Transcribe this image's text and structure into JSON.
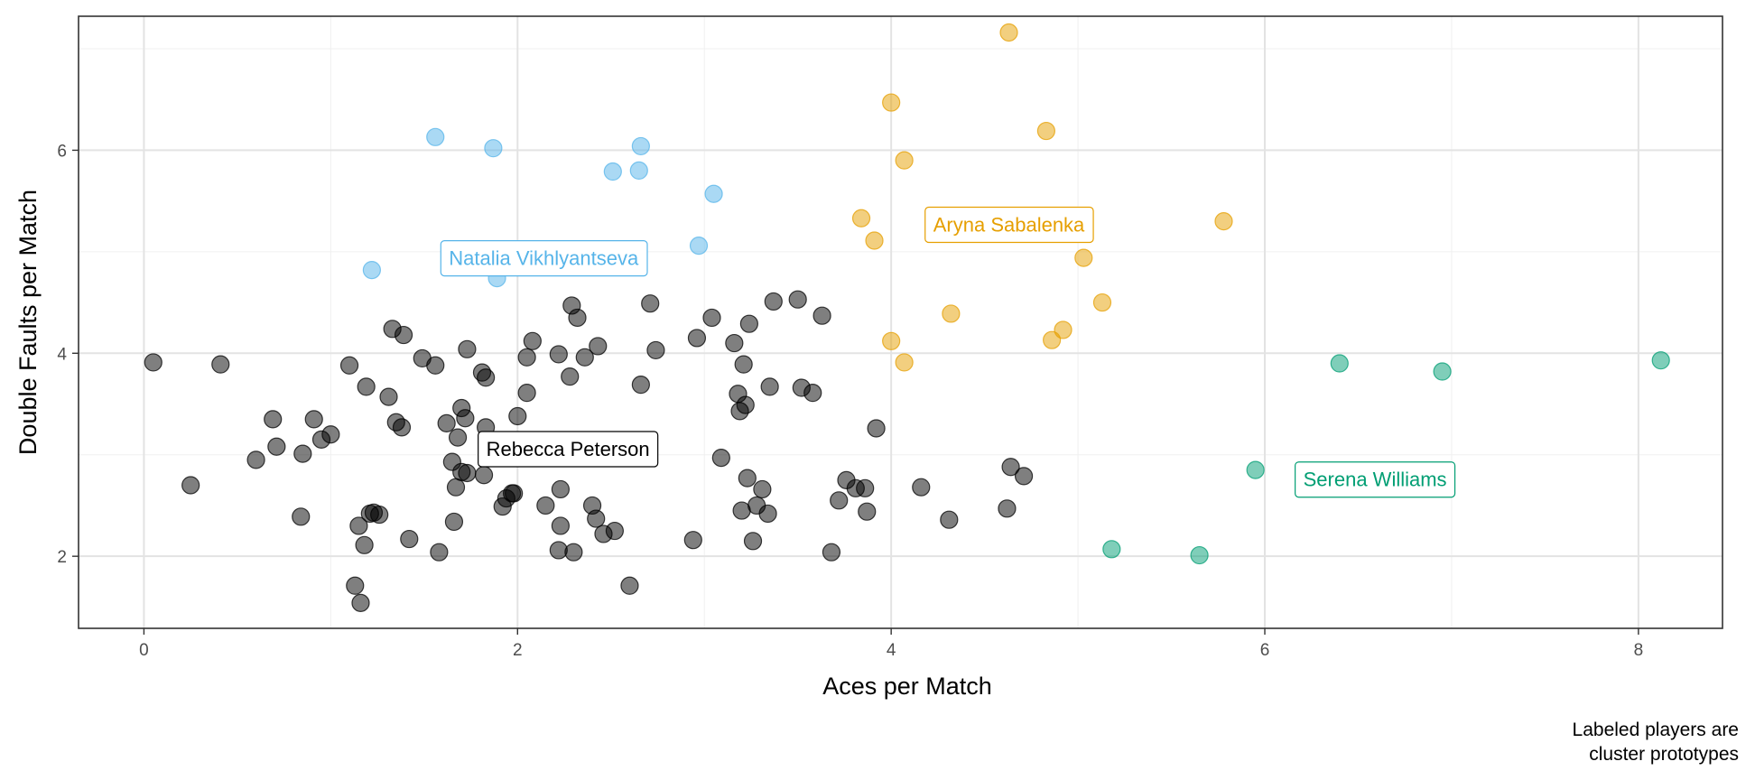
{
  "chart_data": {
    "type": "scatter",
    "xlabel": "Aces per Match",
    "ylabel": "Double Faults per Match",
    "xlim": [
      -0.35,
      8.45
    ],
    "ylim": [
      1.29,
      7.32
    ],
    "xticks": [
      0,
      2,
      4,
      6,
      8
    ],
    "yticks": [
      2,
      4,
      6
    ],
    "grid": true,
    "caption_lines": [
      "Labeled players are",
      "cluster prototypes"
    ],
    "series": [
      {
        "color": "#000000",
        "points": [
          [
            0.05,
            3.91
          ],
          [
            0.25,
            2.7
          ],
          [
            0.41,
            3.89
          ],
          [
            0.6,
            2.95
          ],
          [
            0.69,
            3.35
          ],
          [
            0.71,
            3.08
          ],
          [
            0.84,
            2.39
          ],
          [
            0.85,
            3.01
          ],
          [
            0.91,
            3.35
          ],
          [
            0.95,
            3.15
          ],
          [
            1.0,
            3.2
          ],
          [
            1.1,
            3.88
          ],
          [
            1.13,
            1.71
          ],
          [
            1.15,
            2.3
          ],
          [
            1.16,
            1.54
          ],
          [
            1.18,
            2.11
          ],
          [
            1.19,
            3.67
          ],
          [
            1.21,
            2.42
          ],
          [
            1.23,
            2.43
          ],
          [
            1.26,
            2.41
          ],
          [
            1.31,
            3.57
          ],
          [
            1.33,
            4.24
          ],
          [
            1.35,
            3.32
          ],
          [
            1.38,
            3.27
          ],
          [
            1.39,
            4.18
          ],
          [
            1.42,
            2.17
          ],
          [
            1.49,
            3.95
          ],
          [
            1.56,
            3.88
          ],
          [
            1.58,
            2.04
          ],
          [
            1.62,
            3.31
          ],
          [
            1.65,
            2.93
          ],
          [
            1.66,
            2.34
          ],
          [
            1.67,
            2.68
          ],
          [
            1.68,
            3.17
          ],
          [
            1.7,
            3.46
          ],
          [
            1.7,
            2.83
          ],
          [
            1.72,
            3.36
          ],
          [
            1.73,
            2.82
          ],
          [
            1.73,
            4.04
          ],
          [
            1.81,
            3.81
          ],
          [
            1.83,
            3.27
          ],
          [
            1.83,
            3.76
          ],
          [
            1.82,
            2.8
          ],
          [
            1.92,
            2.49
          ],
          [
            1.94,
            2.57
          ],
          [
            1.97,
            2.62
          ],
          [
            1.98,
            2.62
          ],
          [
            2.0,
            3.38
          ],
          [
            2.05,
            3.96
          ],
          [
            2.05,
            3.61
          ],
          [
            2.08,
            4.12
          ],
          [
            2.15,
            2.5
          ],
          [
            2.22,
            3.99
          ],
          [
            2.22,
            2.06
          ],
          [
            2.23,
            2.3
          ],
          [
            2.23,
            2.66
          ],
          [
            2.28,
            3.77
          ],
          [
            2.29,
            4.47
          ],
          [
            2.3,
            2.04
          ],
          [
            2.32,
            4.35
          ],
          [
            2.36,
            3.96
          ],
          [
            2.4,
            2.5
          ],
          [
            2.42,
            2.37
          ],
          [
            2.43,
            4.07
          ],
          [
            2.46,
            2.22
          ],
          [
            2.52,
            2.25
          ],
          [
            2.6,
            1.71
          ],
          [
            2.66,
            3.69
          ],
          [
            2.71,
            4.49
          ],
          [
            2.74,
            4.03
          ],
          [
            2.94,
            2.16
          ],
          [
            2.96,
            4.15
          ],
          [
            3.04,
            4.35
          ],
          [
            3.09,
            2.97
          ],
          [
            3.16,
            4.1
          ],
          [
            3.18,
            3.6
          ],
          [
            3.19,
            3.43
          ],
          [
            3.2,
            2.45
          ],
          [
            3.21,
            3.89
          ],
          [
            3.22,
            3.49
          ],
          [
            3.23,
            2.77
          ],
          [
            3.24,
            4.29
          ],
          [
            3.26,
            2.15
          ],
          [
            3.28,
            2.5
          ],
          [
            3.31,
            2.66
          ],
          [
            3.34,
            2.42
          ],
          [
            3.35,
            3.67
          ],
          [
            3.37,
            4.51
          ],
          [
            3.5,
            4.53
          ],
          [
            3.52,
            3.66
          ],
          [
            3.58,
            3.61
          ],
          [
            3.63,
            4.37
          ],
          [
            3.68,
            2.04
          ],
          [
            3.72,
            2.55
          ],
          [
            3.76,
            2.75
          ],
          [
            3.81,
            2.67
          ],
          [
            3.86,
            2.67
          ],
          [
            3.87,
            2.44
          ],
          [
            3.92,
            3.26
          ],
          [
            4.16,
            2.68
          ],
          [
            4.31,
            2.36
          ],
          [
            4.62,
            2.47
          ],
          [
            4.64,
            2.88
          ],
          [
            4.71,
            2.79
          ]
        ]
      },
      {
        "color": "#56B4E9",
        "points": [
          [
            1.22,
            4.82
          ],
          [
            1.56,
            6.13
          ],
          [
            1.87,
            6.02
          ],
          [
            1.89,
            4.74
          ],
          [
            2.51,
            5.79
          ],
          [
            2.65,
            5.8
          ],
          [
            2.66,
            6.04
          ],
          [
            2.97,
            5.06
          ],
          [
            3.05,
            5.57
          ]
        ]
      },
      {
        "color": "#E69F00",
        "points": [
          [
            3.84,
            5.33
          ],
          [
            3.91,
            5.11
          ],
          [
            4.0,
            6.47
          ],
          [
            4.0,
            4.12
          ],
          [
            4.07,
            5.9
          ],
          [
            4.07,
            3.91
          ],
          [
            4.32,
            4.39
          ],
          [
            4.63,
            7.16
          ],
          [
            4.83,
            6.19
          ],
          [
            4.86,
            4.13
          ],
          [
            4.92,
            4.23
          ],
          [
            5.03,
            4.94
          ],
          [
            5.13,
            4.5
          ],
          [
            5.78,
            5.3
          ]
        ]
      },
      {
        "color": "#009E73",
        "points": [
          [
            5.18,
            2.07
          ],
          [
            5.65,
            2.01
          ],
          [
            5.95,
            2.85
          ],
          [
            6.4,
            3.9
          ],
          [
            6.95,
            3.82
          ],
          [
            8.12,
            3.93
          ]
        ]
      }
    ],
    "annotations": [
      {
        "text": "Natalia Vikhlyantseva",
        "x": 2.14,
        "y": 4.94,
        "color": "#56B4E9"
      },
      {
        "text": "Aryna Sabalenka",
        "x": 4.63,
        "y": 5.27,
        "color": "#E69F00"
      },
      {
        "text": "Rebecca Peterson",
        "x": 2.27,
        "y": 3.06,
        "color": "#000000"
      },
      {
        "text": "Serena Williams",
        "x": 6.59,
        "y": 2.76,
        "color": "#009E73"
      }
    ]
  }
}
